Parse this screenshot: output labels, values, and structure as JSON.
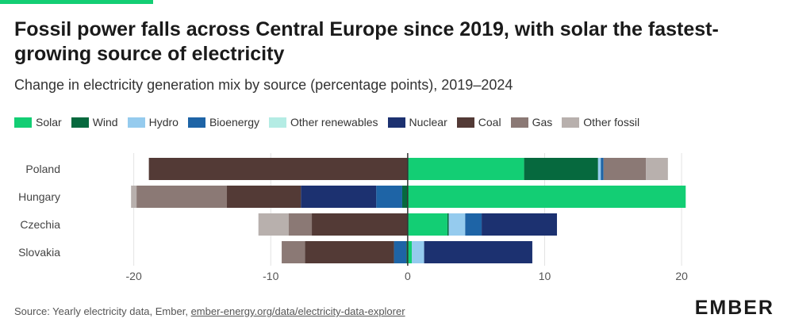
{
  "header": {
    "title": "Fossil power falls across Central Europe since 2019, with solar the fastest-growing source of electricity",
    "subtitle": "Change in electricity generation mix by source (percentage points), 2019–2024"
  },
  "footer": {
    "source_prefix": "Source: Yearly electricity data, Ember, ",
    "source_link": "ember-energy.org/data/electricity-data-explorer",
    "logo": "EMBER"
  },
  "chart_data": {
    "type": "bar",
    "orientation": "horizontal",
    "stacked": "diverging",
    "categories": [
      "Poland",
      "Hungary",
      "Czechia",
      "Slovakia"
    ],
    "series": [
      {
        "name": "Solar",
        "color": "#13ce74",
        "values": [
          8.5,
          20.3,
          2.9,
          0.3
        ]
      },
      {
        "name": "Wind",
        "color": "#06693e",
        "values": [
          5.4,
          -0.4,
          0.1,
          -0.1
        ]
      },
      {
        "name": "Hydro",
        "color": "#95cbee",
        "values": [
          0.2,
          0,
          1.2,
          0.9
        ]
      },
      {
        "name": "Bioenergy",
        "color": "#1e64a6",
        "values": [
          0.2,
          -1.9,
          1.2,
          -0.9
        ]
      },
      {
        "name": "Other renewables",
        "color": "#b4ece4",
        "values": [
          0,
          0,
          0,
          0
        ]
      },
      {
        "name": "Nuclear",
        "color": "#1c3170",
        "values": [
          0,
          -5.5,
          5.5,
          7.9
        ]
      },
      {
        "name": "Coal",
        "color": "#533a36",
        "values": [
          -18.9,
          -5.4,
          -7.0,
          -6.5
        ]
      },
      {
        "name": "Gas",
        "color": "#8b7975",
        "values": [
          3.1,
          -6.6,
          -1.7,
          -1.7
        ]
      },
      {
        "name": "Other fossil",
        "color": "#b8b0ad",
        "values": [
          1.6,
          -0.4,
          -2.2,
          0
        ]
      }
    ],
    "xlim": [
      -20.5,
      21.5
    ],
    "xticks": [
      -20,
      -10,
      0,
      10,
      20
    ],
    "grid": true,
    "legend": "top"
  }
}
